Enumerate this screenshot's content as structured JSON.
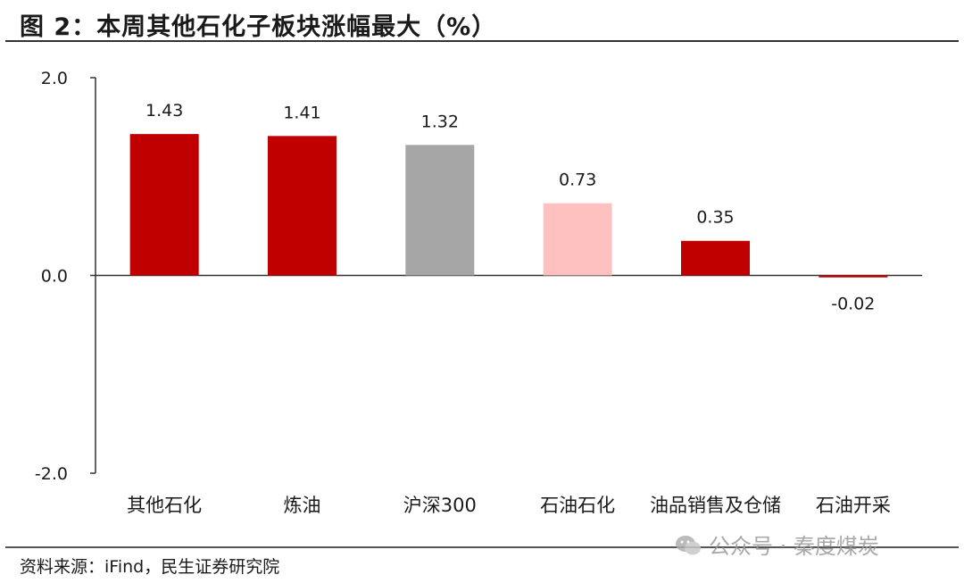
{
  "title": "图 2：本周其他石化子板块涨幅最大（%）",
  "source": "资料来源：iFind，民生证券研究院",
  "watermark": "公众号 · 秦度煤炭",
  "chart_data": {
    "type": "bar",
    "categories": [
      "其他石化",
      "炼油",
      "沪深300",
      "石油石化",
      "油品销售及仓储",
      "石油开采"
    ],
    "values": [
      1.43,
      1.41,
      1.32,
      0.73,
      0.35,
      -0.02
    ],
    "data_labels": [
      "1.43",
      "1.41",
      "1.32",
      "0.73",
      "0.35",
      "-0.02"
    ],
    "colors": [
      "#c00000",
      "#c00000",
      "#a6a6a6",
      "#ffc0c0",
      "#c00000",
      "#c00000"
    ],
    "ylim": [
      -2.0,
      2.0
    ],
    "yticks": [
      -2.0,
      0.0,
      2.0
    ],
    "ytick_labels": [
      "-2.0",
      "0.0",
      "2.0"
    ],
    "grid": false,
    "legend": "none"
  }
}
